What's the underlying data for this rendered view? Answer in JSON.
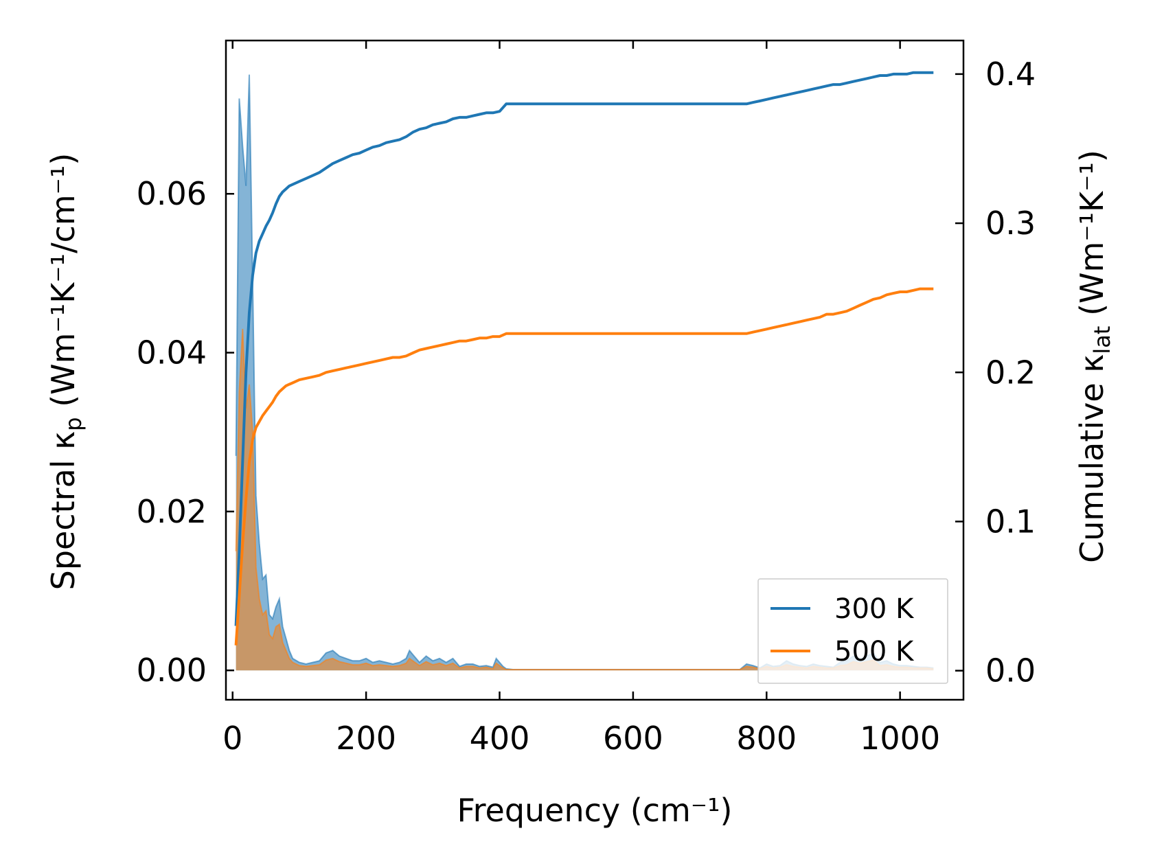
{
  "chart_data": {
    "type": "line",
    "xlabel": "Frequency (cm⁻¹)",
    "ylabel_left": {
      "prefix": "Spectral κ",
      "subscript": "p",
      "suffix": " (Wm⁻¹K⁻¹/cm⁻¹)"
    },
    "ylabel_right": {
      "prefix": "Cumulative κ",
      "subscript": "lat",
      "suffix": " (Wm⁻¹K⁻¹)"
    },
    "xlim": [
      -10,
      1095
    ],
    "ylim_left": [
      -0.0037,
      0.0793
    ],
    "ylim_right": [
      -0.0195,
      0.4225
    ],
    "x_ticks": [
      0,
      200,
      400,
      600,
      800,
      1000
    ],
    "x_tick_labels": [
      "0",
      "200",
      "400",
      "600",
      "800",
      "1000"
    ],
    "y_left_ticks": [
      0.0,
      0.02,
      0.04,
      0.06
    ],
    "y_left_tick_labels": [
      "0.00",
      "0.02",
      "0.04",
      "0.06"
    ],
    "y_right_ticks": [
      0.0,
      0.1,
      0.2,
      0.3,
      0.4
    ],
    "y_right_tick_labels": [
      "0.0",
      "0.1",
      "0.2",
      "0.3",
      "0.4"
    ],
    "legend_position": "lower right",
    "colors": {
      "300K": "#1f77b4",
      "500K": "#ff7f0e"
    },
    "series": [
      {
        "name": "300 K",
        "color": "#1f77b4",
        "spectral": {
          "x": [
            5,
            10,
            15,
            20,
            25,
            30,
            35,
            40,
            45,
            50,
            55,
            60,
            65,
            70,
            75,
            80,
            85,
            90,
            100,
            110,
            120,
            130,
            140,
            150,
            160,
            170,
            180,
            190,
            200,
            210,
            220,
            230,
            240,
            250,
            260,
            265,
            270,
            280,
            290,
            300,
            310,
            320,
            330,
            340,
            350,
            360,
            370,
            380,
            390,
            395,
            400,
            405,
            410,
            420,
            500,
            600,
            700,
            760,
            770,
            780,
            790,
            800,
            810,
            820,
            830,
            840,
            850,
            860,
            870,
            880,
            890,
            900,
            910,
            920,
            930,
            940,
            950,
            960,
            970,
            980,
            990,
            1000,
            1010,
            1020,
            1030,
            1040,
            1050
          ],
          "y": [
            0.027,
            0.072,
            0.066,
            0.061,
            0.075,
            0.049,
            0.022,
            0.016,
            0.0115,
            0.012,
            0.007,
            0.0065,
            0.008,
            0.009,
            0.0055,
            0.004,
            0.0025,
            0.0015,
            0.001,
            0.0008,
            0.001,
            0.0012,
            0.0022,
            0.0025,
            0.0018,
            0.0015,
            0.0012,
            0.0012,
            0.0015,
            0.001,
            0.0012,
            0.001,
            0.0008,
            0.001,
            0.0015,
            0.0025,
            0.002,
            0.001,
            0.0018,
            0.0012,
            0.0015,
            0.001,
            0.0015,
            0.0005,
            0.0008,
            0.0008,
            0.0005,
            0.0006,
            0.0004,
            0.0015,
            0.001,
            0.0005,
            0.0002,
            0.0001,
            0.0001,
            0.0001,
            0.0001,
            0.0001,
            0.0008,
            0.0006,
            0.0003,
            0.0008,
            0.0005,
            0.0006,
            0.0012,
            0.0008,
            0.0006,
            0.0005,
            0.0008,
            0.0006,
            0.0005,
            0.0004,
            0.001,
            0.0012,
            0.0018,
            0.0014,
            0.0018,
            0.0022,
            0.001,
            0.0012,
            0.0008,
            0.0006,
            0.0006,
            0.0005,
            0.0004,
            0.0004,
            0.0003
          ]
        },
        "cumulative": {
          "x": [
            5,
            10,
            15,
            20,
            25,
            30,
            35,
            40,
            45,
            50,
            55,
            60,
            65,
            70,
            75,
            80,
            85,
            90,
            100,
            110,
            120,
            130,
            140,
            150,
            160,
            170,
            180,
            190,
            200,
            210,
            220,
            230,
            240,
            250,
            260,
            270,
            280,
            290,
            300,
            310,
            320,
            330,
            340,
            350,
            360,
            370,
            380,
            390,
            400,
            410,
            500,
            600,
            700,
            760,
            770,
            780,
            790,
            800,
            810,
            820,
            830,
            840,
            850,
            860,
            870,
            880,
            890,
            900,
            910,
            920,
            930,
            940,
            950,
            960,
            970,
            980,
            990,
            1000,
            1010,
            1020,
            1030,
            1040,
            1050
          ],
          "y": [
            0.03,
            0.08,
            0.14,
            0.2,
            0.24,
            0.265,
            0.28,
            0.288,
            0.293,
            0.298,
            0.302,
            0.307,
            0.313,
            0.318,
            0.321,
            0.323,
            0.325,
            0.326,
            0.328,
            0.33,
            0.332,
            0.334,
            0.337,
            0.34,
            0.342,
            0.344,
            0.346,
            0.347,
            0.349,
            0.351,
            0.352,
            0.354,
            0.355,
            0.356,
            0.358,
            0.361,
            0.363,
            0.364,
            0.366,
            0.367,
            0.368,
            0.37,
            0.371,
            0.371,
            0.372,
            0.373,
            0.374,
            0.374,
            0.375,
            0.38,
            0.38,
            0.38,
            0.38,
            0.38,
            0.38,
            0.381,
            0.382,
            0.383,
            0.384,
            0.385,
            0.386,
            0.387,
            0.388,
            0.389,
            0.39,
            0.391,
            0.392,
            0.393,
            0.393,
            0.394,
            0.395,
            0.396,
            0.397,
            0.398,
            0.399,
            0.399,
            0.4,
            0.4,
            0.4,
            0.401,
            0.401,
            0.401,
            0.401
          ]
        }
      },
      {
        "name": "500 K",
        "color": "#ff7f0e",
        "spectral": {
          "x": [
            5,
            10,
            15,
            20,
            25,
            30,
            35,
            40,
            45,
            50,
            55,
            60,
            65,
            70,
            75,
            80,
            85,
            90,
            100,
            110,
            120,
            130,
            140,
            150,
            160,
            170,
            180,
            190,
            200,
            210,
            220,
            230,
            240,
            250,
            260,
            265,
            270,
            280,
            290,
            300,
            310,
            320,
            330,
            340,
            350,
            360,
            370,
            380,
            390,
            395,
            400,
            405,
            410,
            420,
            500,
            600,
            700,
            760,
            770,
            780,
            790,
            800,
            810,
            820,
            830,
            840,
            850,
            860,
            870,
            880,
            890,
            900,
            910,
            920,
            930,
            940,
            950,
            960,
            970,
            980,
            990,
            1000,
            1010,
            1020,
            1030,
            1040,
            1050
          ],
          "y": [
            0.015,
            0.035,
            0.043,
            0.033,
            0.036,
            0.03,
            0.013,
            0.009,
            0.007,
            0.0075,
            0.0045,
            0.004,
            0.0055,
            0.0058,
            0.0035,
            0.0025,
            0.0015,
            0.001,
            0.0006,
            0.0005,
            0.0006,
            0.0007,
            0.0013,
            0.0015,
            0.0011,
            0.0009,
            0.0007,
            0.0007,
            0.0009,
            0.0006,
            0.0007,
            0.0006,
            0.0005,
            0.0006,
            0.0009,
            0.0015,
            0.0012,
            0.0006,
            0.0011,
            0.0007,
            0.0009,
            0.0006,
            0.0009,
            0.0003,
            0.0005,
            0.0005,
            0.0003,
            0.0004,
            0.0002,
            0.0009,
            0.0006,
            0.0003,
            0.0001,
            0.0001,
            0.0001,
            0.0001,
            0.0001,
            0.0001,
            0.0005,
            0.0004,
            0.0002,
            0.0005,
            0.0003,
            0.0004,
            0.0007,
            0.0005,
            0.0004,
            0.0003,
            0.0005,
            0.0004,
            0.0003,
            0.0003,
            0.0006,
            0.0007,
            0.0011,
            0.0009,
            0.0011,
            0.0013,
            0.0006,
            0.0007,
            0.0005,
            0.0004,
            0.0004,
            0.0003,
            0.0003,
            0.0003,
            0.0002
          ]
        },
        "cumulative": {
          "x": [
            5,
            10,
            15,
            20,
            25,
            30,
            35,
            40,
            45,
            50,
            55,
            60,
            65,
            70,
            75,
            80,
            85,
            90,
            100,
            110,
            120,
            130,
            140,
            150,
            160,
            170,
            180,
            190,
            200,
            210,
            220,
            230,
            240,
            250,
            260,
            270,
            280,
            290,
            300,
            310,
            320,
            330,
            340,
            350,
            360,
            370,
            380,
            390,
            400,
            410,
            500,
            600,
            700,
            760,
            770,
            780,
            790,
            800,
            810,
            820,
            830,
            840,
            850,
            860,
            870,
            880,
            890,
            900,
            910,
            920,
            930,
            940,
            950,
            960,
            970,
            980,
            990,
            1000,
            1010,
            1020,
            1030,
            1040,
            1050
          ],
          "y": [
            0.017,
            0.05,
            0.085,
            0.115,
            0.14,
            0.155,
            0.163,
            0.167,
            0.171,
            0.174,
            0.177,
            0.18,
            0.184,
            0.187,
            0.189,
            0.191,
            0.192,
            0.193,
            0.195,
            0.196,
            0.197,
            0.198,
            0.2,
            0.201,
            0.202,
            0.203,
            0.204,
            0.205,
            0.206,
            0.207,
            0.208,
            0.209,
            0.21,
            0.21,
            0.211,
            0.213,
            0.215,
            0.216,
            0.217,
            0.218,
            0.219,
            0.22,
            0.221,
            0.221,
            0.222,
            0.223,
            0.223,
            0.224,
            0.224,
            0.226,
            0.226,
            0.226,
            0.226,
            0.226,
            0.226,
            0.227,
            0.228,
            0.229,
            0.23,
            0.231,
            0.232,
            0.233,
            0.234,
            0.235,
            0.236,
            0.237,
            0.239,
            0.239,
            0.24,
            0.241,
            0.243,
            0.245,
            0.247,
            0.249,
            0.25,
            0.252,
            0.253,
            0.254,
            0.254,
            0.255,
            0.256,
            0.256,
            0.256
          ]
        }
      }
    ]
  }
}
